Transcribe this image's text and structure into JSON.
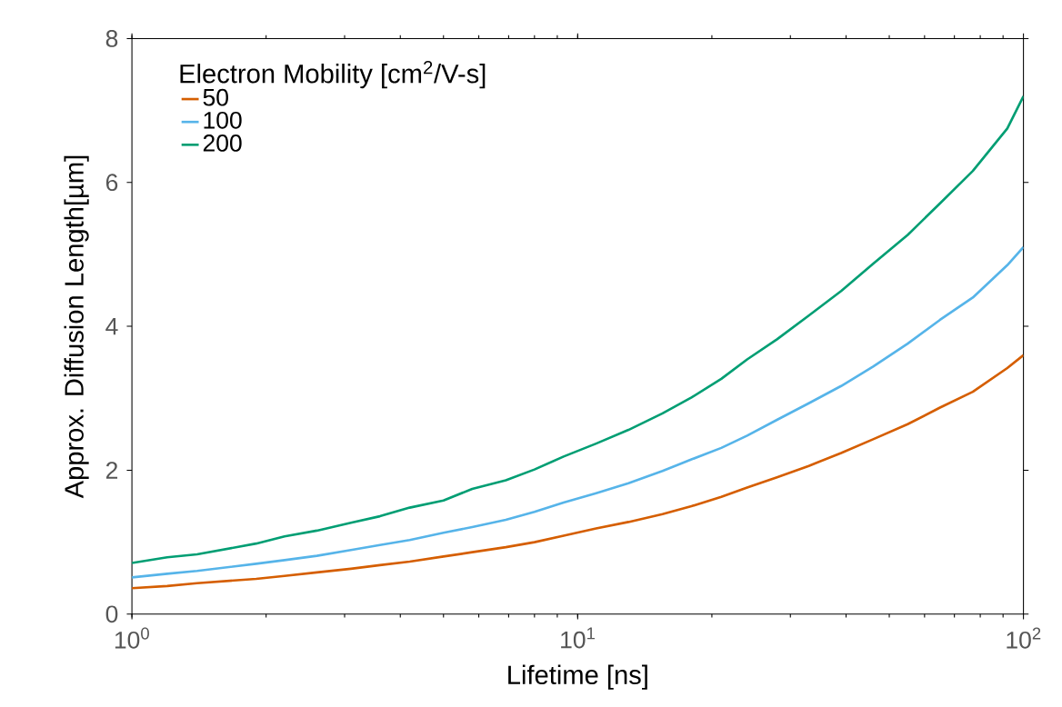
{
  "chart_data": {
    "type": "line",
    "xlabel": "Lifetime [ns]",
    "ylabel": "Approx. Diffusion Length[µm]",
    "legend_title": "Electron Mobility [cm$^{2}$/V-s]",
    "log": "x",
    "legend": "top left",
    "grid": false,
    "line_style": "solid",
    "marker": "none",
    "x": [
      1,
      1.2,
      1.4,
      1.9,
      2.2,
      2.6,
      3.1,
      3.6,
      4.2,
      5,
      5.8,
      6.9,
      8,
      9.3,
      11,
      13,
      15.5,
      18,
      21,
      24,
      28,
      33,
      39,
      46,
      55,
      65,
      77,
      92,
      100
    ],
    "series": [
      {
        "name": "50",
        "color": "#d55e00",
        "values": [
          0.36,
          0.39,
          0.43,
          0.49,
          0.53,
          0.58,
          0.63,
          0.68,
          0.73,
          0.8,
          0.86,
          0.93,
          1.0,
          1.09,
          1.19,
          1.28,
          1.39,
          1.5,
          1.63,
          1.76,
          1.9,
          2.06,
          2.24,
          2.43,
          2.64,
          2.87,
          3.09,
          3.42,
          3.6
        ]
      },
      {
        "name": "100",
        "color": "#56b4e9",
        "values": [
          0.51,
          0.56,
          0.6,
          0.7,
          0.75,
          0.81,
          0.89,
          0.96,
          1.03,
          1.13,
          1.21,
          1.31,
          1.42,
          1.55,
          1.68,
          1.82,
          1.99,
          2.15,
          2.31,
          2.48,
          2.7,
          2.93,
          3.17,
          3.44,
          3.76,
          4.09,
          4.4,
          4.85,
          5.1
        ]
      },
      {
        "name": "200",
        "color": "#009e73",
        "values": [
          0.71,
          0.79,
          0.83,
          0.98,
          1.08,
          1.16,
          1.27,
          1.36,
          1.48,
          1.58,
          1.74,
          1.86,
          2.01,
          2.19,
          2.37,
          2.56,
          2.79,
          3.01,
          3.27,
          3.54,
          3.82,
          4.15,
          4.49,
          4.87,
          5.27,
          5.71,
          6.16,
          6.75,
          7.2
        ]
      }
    ],
    "xlim": [
      1,
      100
    ],
    "xticks": [
      {
        "value": 1,
        "label": "10$^{0}$"
      },
      {
        "value": 10,
        "label": "10$^{1}$"
      },
      {
        "value": 100,
        "label": "10$^{2}$"
      }
    ],
    "ylim": [
      0,
      8
    ],
    "yticks": [
      0,
      2,
      4,
      6,
      8
    ]
  }
}
